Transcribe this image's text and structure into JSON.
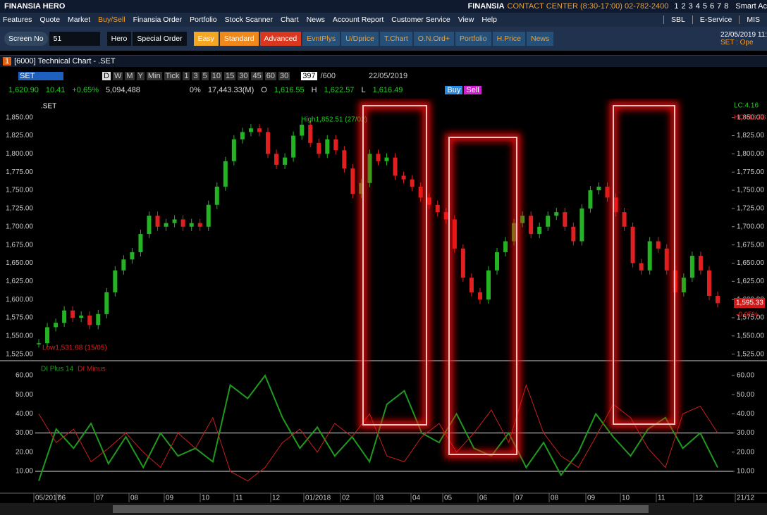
{
  "titlebar": {
    "app": "FINANSIA HERO",
    "brand": "FINANSIA",
    "contact": "CONTACT CENTER (8:30-17:00) 02-782-2400",
    "pages": [
      "1",
      "2",
      "3",
      "4",
      "5",
      "6",
      "7",
      "8"
    ],
    "smart": "Smart Ac"
  },
  "menu": [
    "Features",
    "Quote",
    "Market",
    "Buy/Sell",
    "Finansia Order",
    "Portfolio",
    "Stock Scanner",
    "Chart",
    "News",
    "Account Report",
    "Customer Service",
    "View",
    "Help"
  ],
  "menu_right": [
    "SBL",
    "E-Service",
    "MIS"
  ],
  "toolbar": {
    "screen": "Screen No",
    "screen_value": "51",
    "hero": "Hero",
    "special": "Special Order",
    "buttons": [
      {
        "label": "Easy",
        "color": "#f5a623"
      },
      {
        "label": "Standard",
        "color": "#f0891c"
      },
      {
        "label": "Advanced",
        "color": "#d9381e"
      },
      {
        "label": "EvntPlys",
        "color": "#24507a"
      },
      {
        "label": "U/Dprice",
        "color": "#24507a"
      },
      {
        "label": "T.Chart",
        "color": "#24507a"
      },
      {
        "label": "O.N.Ord+",
        "color": "#24507a"
      },
      {
        "label": "Portfolio",
        "color": "#24507a"
      },
      {
        "label": "H.Price",
        "color": "#24507a"
      },
      {
        "label": "News",
        "color": "#24507a"
      }
    ],
    "date": "22/05/2019 11:",
    "market": "SET : Ope"
  },
  "window": {
    "num": "1",
    "title": "[6000] Technical Chart - .SET"
  },
  "chart_toolbar": {
    "symbol": "SET",
    "periods": [
      "D",
      "W",
      "M",
      "Y",
      "Min",
      "Tick",
      "1",
      "3",
      "5",
      "10",
      "15",
      "30",
      "45",
      "60",
      "30"
    ],
    "bars": "397",
    "total": "/600",
    "date": "22/05/2019"
  },
  "quote": {
    "last": "1,620.90",
    "change": "10.41",
    "pct": "+0.65%",
    "volume": "5,094,488",
    "vol_pct": "0%",
    "value": "17,443.33(M)",
    "o_label": "O",
    "open": "1,616.55",
    "h_label": "H",
    "high": "1,622.57",
    "l_label": "L",
    "low": "1,616.49",
    "buy": "Buy",
    "sell": "Sell"
  },
  "x_labels": [
    "05/2017",
    "06",
    "07",
    "08",
    "09",
    "10",
    "11",
    "12",
    "01/2018",
    "02",
    "03",
    "04",
    "05",
    "06",
    "07",
    "08",
    "09",
    "10",
    "11",
    "12",
    "21/12"
  ],
  "chart_data": [
    {
      "type": "candle",
      "title": ".SET",
      "up_color": "#22b422",
      "down_color": "#e02020",
      "values": [
        1540,
        1562,
        1568,
        1585,
        1575,
        1578,
        1565,
        1580,
        1610,
        1640,
        1655,
        1665,
        1690,
        1715,
        1700,
        1705,
        1710,
        1700,
        1705,
        1700,
        1730,
        1755,
        1790,
        1820,
        1830,
        1835,
        1830,
        1800,
        1785,
        1795,
        1825,
        1840,
        1815,
        1800,
        1820,
        1805,
        1780,
        1745,
        1760,
        1800,
        1790,
        1795,
        1770,
        1765,
        1755,
        1740,
        1730,
        1720,
        1710,
        1670,
        1630,
        1610,
        1600,
        1640,
        1665,
        1680,
        1705,
        1715,
        1690,
        1700,
        1715,
        1720,
        1700,
        1680,
        1725,
        1750,
        1755,
        1740,
        1720,
        1700,
        1650,
        1640,
        1680,
        1670,
        1640,
        1610,
        1630,
        1660,
        1640,
        1605,
        1595
      ],
      "ylim": [
        1516,
        1871
      ],
      "yticks": [
        {
          "value": 1525,
          "label": "1,525.00"
        },
        {
          "value": 1550,
          "label": "1,550.00"
        },
        {
          "value": 1575,
          "label": "1,575.00"
        },
        {
          "value": 1600,
          "label": "1,600.00"
        },
        {
          "value": 1625,
          "label": "1,625.00"
        },
        {
          "value": 1650,
          "label": "1,650.00"
        },
        {
          "value": 1675,
          "label": "1,675.00"
        },
        {
          "value": 1700,
          "label": "1,700.00"
        },
        {
          "value": 1725,
          "label": "1,725.00"
        },
        {
          "value": 1750,
          "label": "1,750.00"
        },
        {
          "value": 1775,
          "label": "1,775.00"
        },
        {
          "value": 1800,
          "label": "1,800.00"
        },
        {
          "value": 1825,
          "label": "1,825.00"
        },
        {
          "value": 1850,
          "label": "1,850.00"
        }
      ],
      "annotations": {
        "high": "High1,852.51 (27/02)",
        "low": "Low1,531.68 (15/05)",
        "lc": "LC:4.16",
        "hc": "HC:-13.88",
        "last": "1,595.33",
        "last_pct": "-0.05%"
      }
    },
    {
      "type": "line",
      "series": [
        {
          "name": "DI Plus 14",
          "color": "#1f9a1f",
          "values": [
            5,
            32,
            22,
            35,
            14,
            28,
            12,
            30,
            18,
            22,
            15,
            55,
            48,
            60,
            38,
            22,
            33,
            18,
            28,
            15,
            45,
            52,
            30,
            25,
            40,
            22,
            18,
            30,
            12,
            25,
            8,
            20,
            40,
            28,
            18,
            32,
            38,
            22,
            30,
            12
          ]
        },
        {
          "name": "DI Minus",
          "color": "#c81e1e",
          "values": [
            40,
            25,
            32,
            15,
            22,
            30,
            20,
            12,
            30,
            22,
            38,
            10,
            5,
            12,
            25,
            32,
            20,
            35,
            28,
            40,
            18,
            15,
            28,
            35,
            20,
            30,
            42,
            25,
            55,
            30,
            18,
            12,
            28,
            45,
            38,
            22,
            12,
            40,
            44,
            30
          ]
        }
      ],
      "ylim": [
        -1.4,
        66.6
      ],
      "yticks": [
        {
          "value": 10,
          "label": "10.00"
        },
        {
          "value": 20,
          "label": "20.00"
        },
        {
          "value": 30,
          "label": "30.00"
        },
        {
          "value": 40,
          "label": "40.00"
        },
        {
          "value": 50,
          "label": "50.00"
        },
        {
          "value": 60,
          "label": "60.00"
        }
      ],
      "grid_lines": [
        10,
        30
      ]
    }
  ]
}
